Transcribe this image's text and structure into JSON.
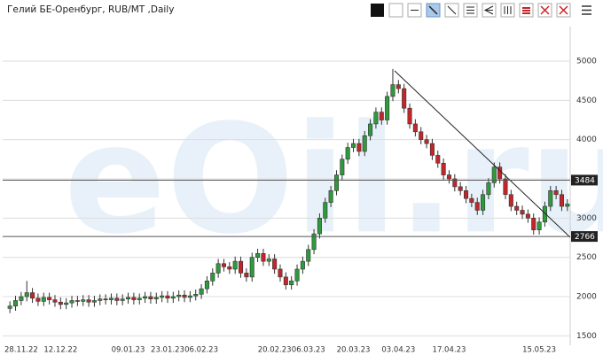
{
  "chart_data": {
    "type": "candlestick",
    "title": "Гелий БЕ-Оренбург, RUB/MT ,Daily",
    "watermark": "eOil.ru",
    "categories": [
      null,
      null,
      "28.11.22",
      null,
      null,
      null,
      null,
      null,
      null,
      "12.12.22",
      null,
      null,
      null,
      null,
      null,
      null,
      null,
      null,
      null,
      null,
      null,
      "09.01.23",
      null,
      null,
      null,
      null,
      null,
      null,
      "23.01.23",
      null,
      null,
      null,
      null,
      null,
      "06.02.23",
      null,
      null,
      null,
      null,
      null,
      null,
      null,
      null,
      null,
      null,
      null,
      null,
      "20.02.23",
      null,
      null,
      null,
      null,
      null,
      "06.03.23",
      null,
      null,
      null,
      null,
      null,
      null,
      null,
      "20.03.23",
      null,
      null,
      null,
      null,
      null,
      null,
      null,
      "03.04.23",
      null,
      null,
      null,
      null,
      null,
      null,
      null,
      null,
      "17.04.23",
      null,
      null,
      null,
      null,
      null,
      null,
      null,
      null,
      null,
      null,
      null,
      null,
      null,
      null,
      null,
      "15.05.23",
      null,
      null,
      null,
      null,
      null
    ],
    "open": [
      1850,
      1880,
      1950,
      2000,
      2050,
      1980,
      1940,
      1990,
      1960,
      1930,
      1900,
      1920,
      1950,
      1940,
      1960,
      1930,
      1950,
      1970,
      1960,
      1980,
      1950,
      1970,
      1990,
      1960,
      1980,
      2000,
      1970,
      1990,
      2010,
      1980,
      2000,
      2020,
      1990,
      2010,
      2030,
      2100,
      2200,
      2300,
      2420,
      2380,
      2350,
      2450,
      2300,
      2250,
      2500,
      2550,
      2450,
      2480,
      2350,
      2250,
      2150,
      2200,
      2350,
      2450,
      2600,
      2800,
      3000,
      3200,
      3350,
      3550,
      3750,
      3900,
      3950,
      3850,
      4050,
      4200,
      4350,
      4250,
      4550,
      4700,
      4650,
      4400,
      4200,
      4100,
      4000,
      3950,
      3800,
      3700,
      3550,
      3500,
      3400,
      3350,
      3250,
      3200,
      3100,
      3300,
      3450,
      3650,
      3500,
      3300,
      3150,
      3100,
      3050,
      3000,
      2850,
      2950,
      3150,
      3350,
      3300,
      3150
    ],
    "high": [
      1940,
      2010,
      2060,
      2200,
      2110,
      2040,
      2050,
      2050,
      2020,
      1990,
      1980,
      2010,
      2010,
      2020,
      2020,
      2010,
      2030,
      2030,
      2040,
      2040,
      2030,
      2050,
      2050,
      2040,
      2060,
      2060,
      2050,
      2070,
      2070,
      2060,
      2080,
      2080,
      2070,
      2090,
      2160,
      2260,
      2360,
      2480,
      2480,
      2440,
      2510,
      2510,
      2360,
      2560,
      2610,
      2610,
      2540,
      2540,
      2410,
      2310,
      2260,
      2410,
      2510,
      2660,
      2860,
      3060,
      3260,
      3410,
      3610,
      3810,
      3960,
      4010,
      4010,
      4110,
      4260,
      4410,
      4410,
      4610,
      4900,
      4760,
      4710,
      4460,
      4260,
      4160,
      4060,
      4010,
      3860,
      3760,
      3610,
      3560,
      3460,
      3410,
      3310,
      3260,
      3360,
      3510,
      3710,
      3710,
      3560,
      3360,
      3210,
      3160,
      3110,
      3060,
      3010,
      3210,
      3410,
      3410,
      3360,
      3240
    ],
    "low": [
      1790,
      1820,
      1890,
      1940,
      1920,
      1880,
      1880,
      1900,
      1870,
      1840,
      1840,
      1860,
      1880,
      1880,
      1870,
      1870,
      1890,
      1900,
      1900,
      1890,
      1890,
      1910,
      1900,
      1900,
      1920,
      1910,
      1910,
      1930,
      1920,
      1920,
      1940,
      1930,
      1930,
      1950,
      1970,
      2040,
      2140,
      2240,
      2320,
      2290,
      2290,
      2240,
      2190,
      2190,
      2440,
      2390,
      2390,
      2290,
      2190,
      2090,
      2090,
      2140,
      2290,
      2390,
      2540,
      2740,
      2940,
      3140,
      3290,
      3490,
      3690,
      3840,
      3790,
      3790,
      3990,
      4140,
      4190,
      4190,
      4490,
      4590,
      4340,
      4140,
      4040,
      3940,
      3890,
      3740,
      3640,
      3490,
      3440,
      3340,
      3290,
      3190,
      3140,
      3040,
      3040,
      3240,
      3390,
      3440,
      3240,
      3090,
      3040,
      2990,
      2940,
      2790,
      2790,
      2890,
      3090,
      3240,
      3090,
      3090
    ],
    "close": [
      1880,
      1950,
      2000,
      2050,
      1980,
      1940,
      1990,
      1960,
      1930,
      1900,
      1920,
      1950,
      1940,
      1960,
      1930,
      1950,
      1970,
      1960,
      1980,
      1950,
      1970,
      1990,
      1960,
      1980,
      2000,
      1970,
      1990,
      2010,
      1980,
      2000,
      2020,
      1990,
      2010,
      2030,
      2100,
      2200,
      2300,
      2420,
      2380,
      2350,
      2450,
      2300,
      2250,
      2500,
      2550,
      2450,
      2480,
      2350,
      2250,
      2150,
      2200,
      2350,
      2450,
      2600,
      2800,
      3000,
      3200,
      3350,
      3550,
      3750,
      3900,
      3950,
      3850,
      4050,
      4200,
      4350,
      4250,
      4550,
      4700,
      4650,
      4400,
      4200,
      4100,
      4000,
      3950,
      3800,
      3700,
      3550,
      3500,
      3400,
      3350,
      3250,
      3200,
      3100,
      3300,
      3450,
      3650,
      3500,
      3300,
      3150,
      3100,
      3050,
      3000,
      2850,
      2950,
      3150,
      3350,
      3300,
      3150,
      3180
    ],
    "up_color": "#2e9a3c",
    "down_color": "#c3262a",
    "levels": [
      3484,
      2766
    ],
    "ylim": [
      1380,
      5440
    ],
    "yticks": [
      1500,
      2000,
      2500,
      3000,
      3500,
      4000,
      4500,
      5000
    ],
    "grid": true
  }
}
